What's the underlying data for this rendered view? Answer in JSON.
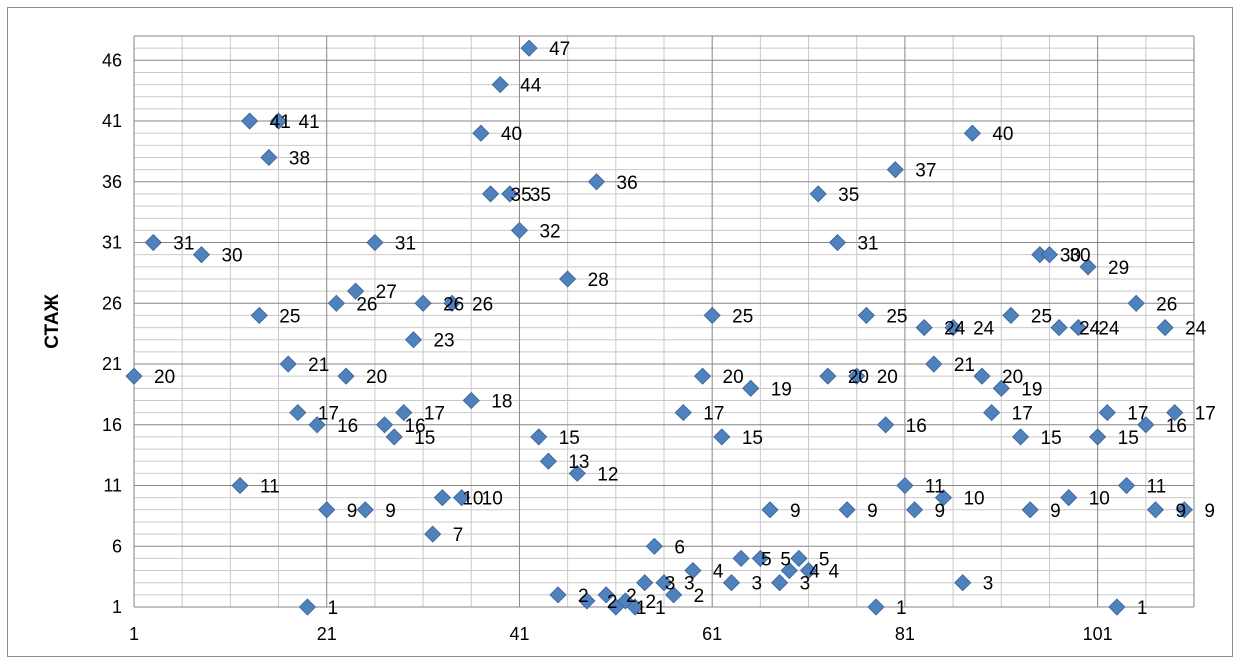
{
  "chart_data": {
    "type": "scatter",
    "title": "",
    "xlabel": "",
    "ylabel": "СТАЖ",
    "xlim": [
      1,
      111
    ],
    "ylim": [
      1,
      48
    ],
    "x_ticks": [
      1,
      21,
      41,
      61,
      81,
      101
    ],
    "y_ticks": [
      1,
      6,
      11,
      16,
      21,
      26,
      31,
      36,
      41,
      46
    ],
    "grid": true,
    "legend": "none",
    "marker": "diamond",
    "marker_color": "#4f81bd",
    "data_labels": true,
    "points": [
      [
        1,
        20
      ],
      [
        3,
        31
      ],
      [
        8,
        30
      ],
      [
        12,
        11
      ],
      [
        13,
        41
      ],
      [
        14,
        25
      ],
      [
        15,
        38
      ],
      [
        16,
        41
      ],
      [
        17,
        21
      ],
      [
        18,
        17
      ],
      [
        19,
        1
      ],
      [
        20,
        16
      ],
      [
        21,
        9
      ],
      [
        22,
        26
      ],
      [
        23,
        20
      ],
      [
        24,
        27
      ],
      [
        25,
        9
      ],
      [
        26,
        31
      ],
      [
        27,
        16
      ],
      [
        28,
        15
      ],
      [
        29,
        17
      ],
      [
        30,
        23
      ],
      [
        31,
        26
      ],
      [
        32,
        7
      ],
      [
        33,
        10
      ],
      [
        34,
        26
      ],
      [
        35,
        10
      ],
      [
        36,
        18
      ],
      [
        37,
        40
      ],
      [
        38,
        35
      ],
      [
        39,
        44
      ],
      [
        40,
        35
      ],
      [
        41,
        32
      ],
      [
        42,
        47
      ],
      [
        43,
        15
      ],
      [
        44,
        13
      ],
      [
        45,
        2
      ],
      [
        46,
        28
      ],
      [
        47,
        12
      ],
      [
        48,
        1.5
      ],
      [
        49,
        36
      ],
      [
        50,
        2
      ],
      [
        51,
        1
      ],
      [
        52,
        1.5
      ],
      [
        53,
        1
      ],
      [
        54,
        3
      ],
      [
        55,
        6
      ],
      [
        56,
        3
      ],
      [
        57,
        2
      ],
      [
        58,
        17
      ],
      [
        59,
        4
      ],
      [
        60,
        20
      ],
      [
        61,
        25
      ],
      [
        62,
        15
      ],
      [
        63,
        3
      ],
      [
        64,
        5
      ],
      [
        65,
        19
      ],
      [
        66,
        5
      ],
      [
        67,
        9
      ],
      [
        68,
        3
      ],
      [
        69,
        4
      ],
      [
        70,
        5
      ],
      [
        71,
        4
      ],
      [
        72,
        35
      ],
      [
        73,
        20
      ],
      [
        74,
        31
      ],
      [
        75,
        9
      ],
      [
        76,
        20
      ],
      [
        77,
        25
      ],
      [
        78,
        1
      ],
      [
        79,
        16
      ],
      [
        80,
        37
      ],
      [
        81,
        11
      ],
      [
        82,
        9
      ],
      [
        83,
        24
      ],
      [
        84,
        21
      ],
      [
        85,
        10
      ],
      [
        86,
        24
      ],
      [
        87,
        3
      ],
      [
        88,
        40
      ],
      [
        89,
        20
      ],
      [
        90,
        17
      ],
      [
        91,
        19
      ],
      [
        92,
        25
      ],
      [
        93,
        15
      ],
      [
        94,
        9
      ],
      [
        95,
        30
      ],
      [
        96,
        30
      ],
      [
        97,
        24
      ],
      [
        98,
        10
      ],
      [
        99,
        24
      ],
      [
        100,
        29
      ],
      [
        101,
        15
      ],
      [
        102,
        17
      ],
      [
        103,
        1
      ],
      [
        104,
        11
      ],
      [
        105,
        26
      ],
      [
        106,
        16
      ],
      [
        107,
        9
      ],
      [
        108,
        24
      ],
      [
        109,
        17
      ],
      [
        110,
        9
      ]
    ]
  }
}
